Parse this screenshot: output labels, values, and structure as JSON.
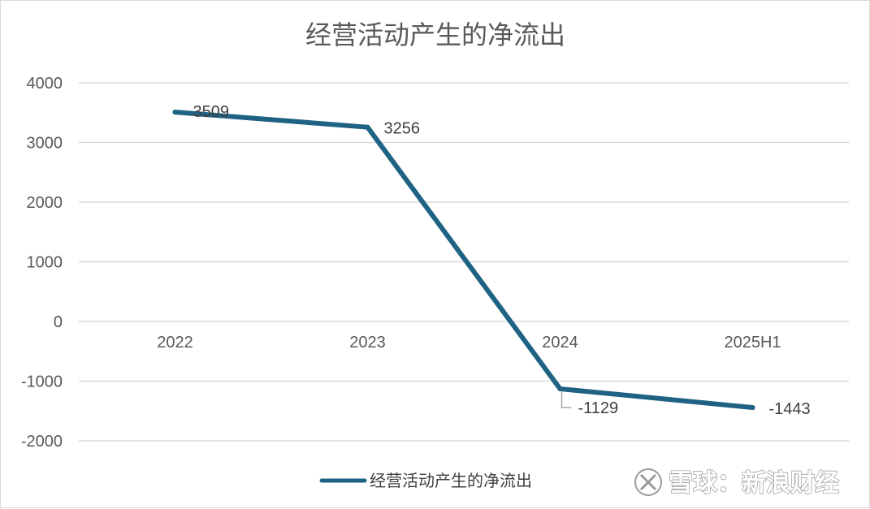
{
  "chart_data": {
    "type": "line",
    "title": "经营活动产生的净流出",
    "categories": [
      "2022",
      "2023",
      "2024",
      "2025H1"
    ],
    "series": [
      {
        "name": "经营活动产生的净流出",
        "values": [
          3509,
          3256,
          -1129,
          -1443
        ]
      }
    ],
    "data_labels": [
      "3509",
      "3256",
      "-1129",
      "-1443"
    ],
    "yticks": [
      "4000",
      "3000",
      "2000",
      "1000",
      "0",
      "-1000",
      "-2000"
    ],
    "ylim": [
      -2000,
      4000
    ],
    "grid": true,
    "legend_position": "bottom",
    "series_color": "#1f6283"
  },
  "watermark": "雪球：新浪财经"
}
